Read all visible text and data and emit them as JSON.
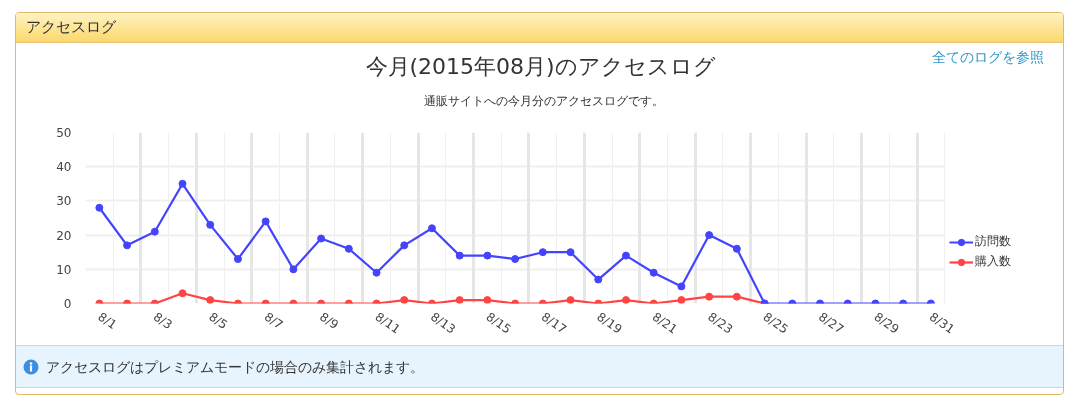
{
  "chart_data": {
    "type": "line",
    "title": "今月(2015年08月)のアクセスログ",
    "subtitle": "通販サイトへの今月分のアクセスログです。",
    "annotations": [
      "アクセスログ",
      "全てのログを参照",
      "アクセスログはプレミアムモードの場合のみ集計されます。"
    ],
    "categories": [
      "8/1",
      null,
      "8/3",
      null,
      "8/5",
      null,
      "8/7",
      null,
      "8/9",
      null,
      "8/11",
      null,
      "8/13",
      null,
      "8/15",
      null,
      "8/17",
      null,
      "8/19",
      null,
      "8/21",
      null,
      "8/23",
      null,
      "8/25",
      null,
      "8/27",
      null,
      "8/29",
      null,
      "8/31"
    ],
    "series": [
      {
        "name": "訪問数",
        "color": "#4444ff",
        "values": [
          28,
          17,
          21,
          35,
          23,
          13,
          24,
          10,
          19,
          16,
          9,
          17,
          22,
          14,
          14,
          13,
          15,
          15,
          7,
          14,
          9,
          5,
          20,
          16,
          0,
          0,
          0,
          0,
          0,
          0,
          0
        ]
      },
      {
        "name": "購入数",
        "color": "#ff4444",
        "values": [
          0,
          0,
          0,
          3,
          1,
          0,
          0,
          0,
          0,
          0,
          0,
          1,
          0,
          1,
          1,
          0,
          0,
          1,
          0,
          1,
          0,
          1,
          2,
          2,
          0,
          null,
          null,
          null,
          null,
          null,
          null
        ]
      }
    ],
    "ylim": [
      0,
      50
    ],
    "yticks": [
      0,
      10,
      20,
      30,
      40,
      50
    ],
    "grid": true,
    "legend": "right",
    "marker": "circle",
    "line_style": "solid"
  }
}
